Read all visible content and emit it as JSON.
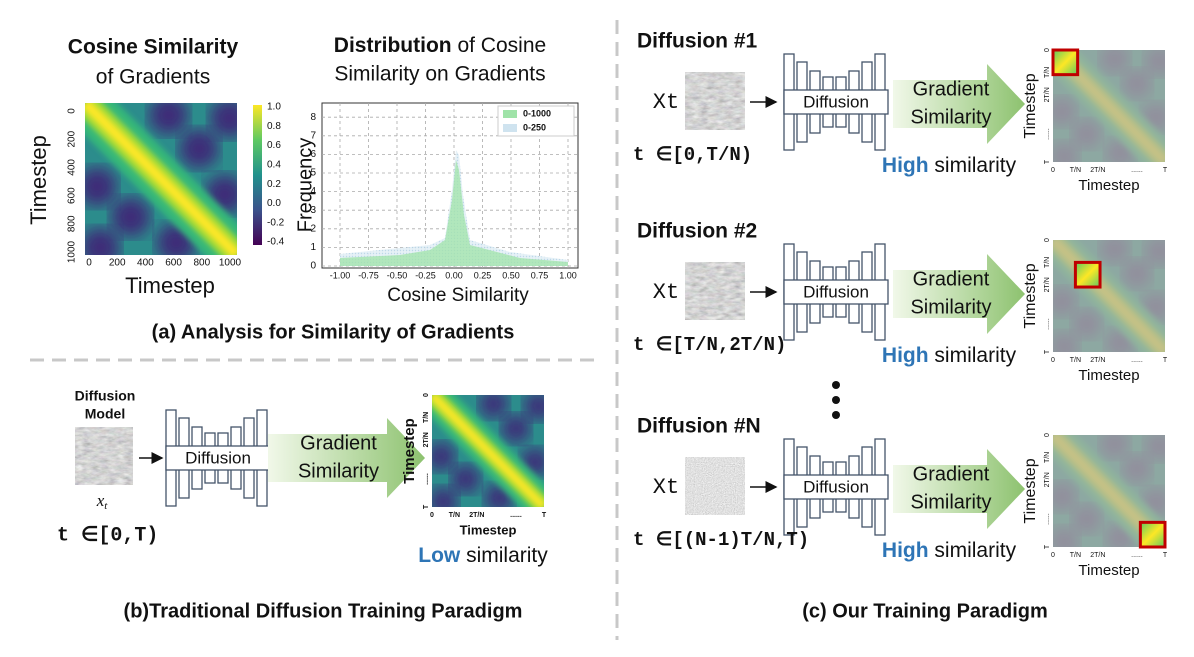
{
  "panel_a": {
    "heatmap": {
      "title_bold": "Cosine Similarity",
      "title_rest": "of Gradients",
      "y_label": "Timestep",
      "x_label": "Timestep",
      "x_ticks": [
        "0",
        "200",
        "400",
        "600",
        "800",
        "1000"
      ],
      "y_ticks": [
        "0",
        "200",
        "400",
        "600",
        "800",
        "1000"
      ],
      "colorbar_ticks": [
        "1.0",
        "0.8",
        "0.6",
        "0.4",
        "0.2",
        "0.0",
        "-0.2",
        "-0.4"
      ]
    },
    "histogram": {
      "title_bold": "Distribution",
      "title_rest_1": " of Cosine",
      "title_rest_2": "Similarity on Gradients",
      "y_label": "Frequency",
      "x_label": "Cosine Similarity",
      "x_ticks": [
        "-1.00",
        "-0.75",
        "-0.50",
        "-0.25",
        "0.00",
        "0.25",
        "0.50",
        "0.75",
        "1.00"
      ],
      "y_ticks": [
        "0",
        "1",
        "2",
        "3",
        "4",
        "5",
        "6",
        "7",
        "8"
      ],
      "legend": [
        "0-1000",
        "0-250"
      ]
    },
    "caption": "(a) Analysis for Similarity of Gradients"
  },
  "panel_b": {
    "model_label": [
      "Diffusion",
      "Model"
    ],
    "input_label": "x",
    "input_subscript": "t",
    "block_label": "Diffusion",
    "arrow_label": [
      "Gradient",
      "Similarity"
    ],
    "time_range": "t ∈[0,T)",
    "result_bold": "Low",
    "result_rest": " similarity",
    "heatmap": {
      "y_label": "Timestep",
      "x_label": "Timestep",
      "x_ticks": [
        "0",
        "T/N",
        "2T/N",
        "......",
        "T"
      ],
      "y_ticks": [
        "0",
        "T/N",
        "2T/N",
        "......",
        "T"
      ]
    },
    "caption": "(b)Traditional Diffusion Training Paradigm"
  },
  "panel_c": {
    "rows": [
      {
        "title": "Diffusion #1",
        "input_label": "Xt",
        "block_label": "Diffusion",
        "arrow_label": [
          "Gradient",
          "Similarity"
        ],
        "time_range": "t ∈[0,T/N)",
        "result_bold": "High",
        "result_rest": " similarity",
        "heatmap": {
          "y_label": "Timestep",
          "x_label": "Timestep",
          "x_ticks": [
            "0",
            "T/N",
            "2T/N",
            "......",
            "T"
          ],
          "y_ticks": [
            "0",
            "T/N",
            "2T/N",
            "......",
            "T"
          ]
        }
      },
      {
        "title": "Diffusion #2",
        "input_label": "Xt",
        "block_label": "Diffusion",
        "arrow_label": [
          "Gradient",
          "Similarity"
        ],
        "time_range": "t ∈[T/N,2T/N)",
        "result_bold": "High",
        "result_rest": " similarity",
        "heatmap": {
          "y_label": "Timestep",
          "x_label": "Timestep",
          "x_ticks": [
            "0",
            "T/N",
            "2T/N",
            "......",
            "T"
          ],
          "y_ticks": [
            "0",
            "T/N",
            "2T/N",
            "......",
            "T"
          ]
        }
      },
      {
        "title": "Diffusion #N",
        "input_label": "Xt",
        "block_label": "Diffusion",
        "arrow_label": [
          "Gradient",
          "Similarity"
        ],
        "time_range": "t ∈[(N-1)T/N,T)",
        "result_bold": "High",
        "result_rest": " similarity",
        "heatmap": {
          "y_label": "Timestep",
          "x_label": "Timestep",
          "x_ticks": [
            "0",
            "T/N",
            "2T/N",
            "......",
            "T"
          ],
          "y_ticks": [
            "0",
            "T/N",
            "2T/N",
            "......",
            "T"
          ]
        }
      }
    ],
    "caption": "(c) Our Training Paradigm"
  }
}
